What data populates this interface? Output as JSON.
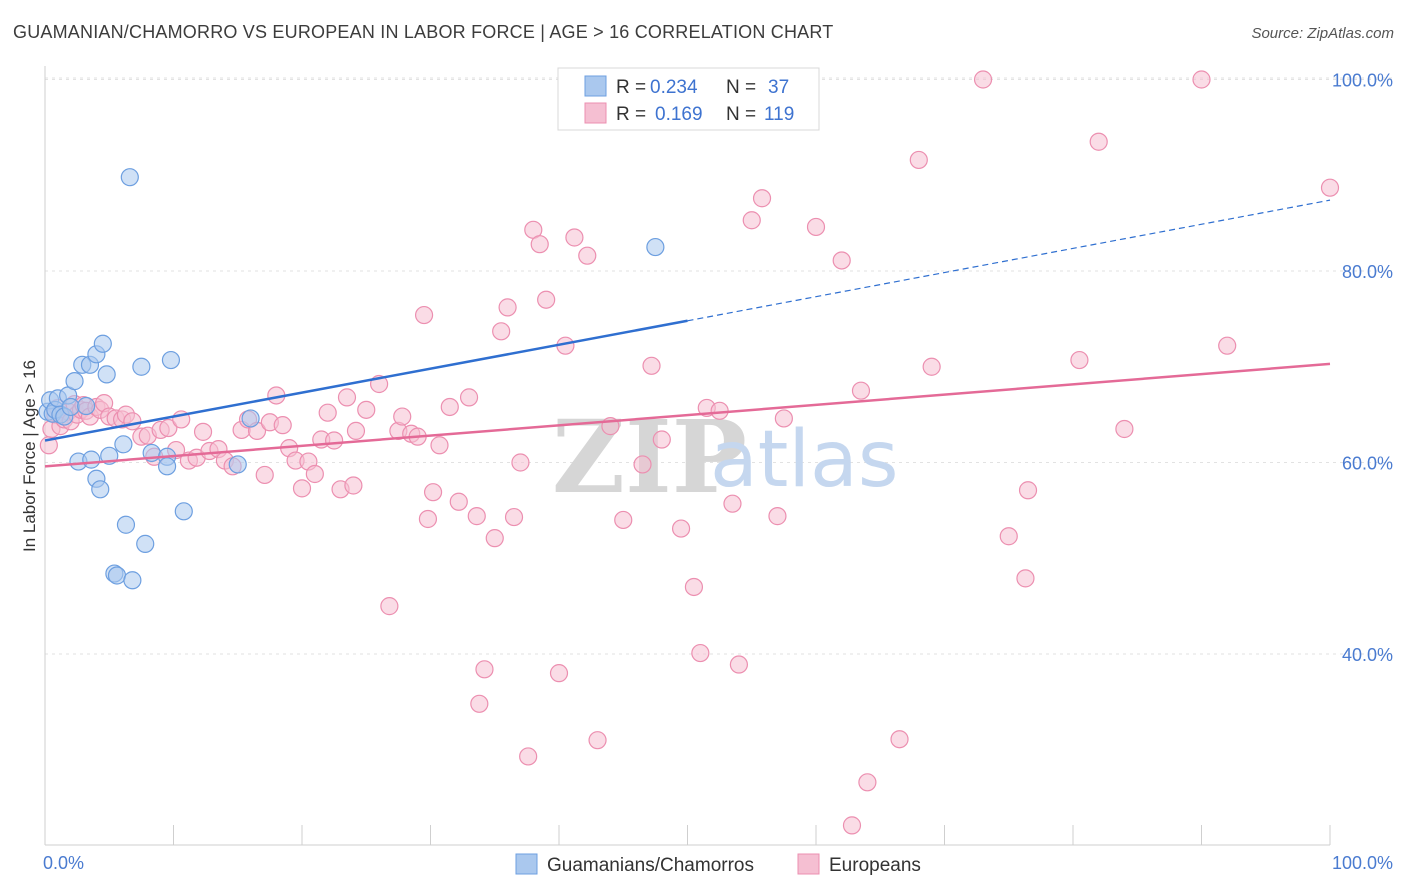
{
  "title": "GUAMANIAN/CHAMORRO VS EUROPEAN IN LABOR FORCE | AGE > 16 CORRELATION CHART",
  "source": "Source: ZipAtlas.com",
  "watermark": {
    "zip": "ZIP",
    "atlas": "atlas"
  },
  "legend_top": {
    "rows": [
      {
        "r_label": "R =",
        "r_value": "0.234",
        "n_label": "N =",
        "n_value": "37"
      },
      {
        "r_label": "R =",
        "r_value": "0.169",
        "n_label": "N =",
        "n_value": "119"
      }
    ]
  },
  "legend_bottom": [
    "Guamanians/Chamorros",
    "Europeans"
  ],
  "colors": {
    "blue_fill": "#aac8ee",
    "blue_stroke": "#6d9fe0",
    "blue_line": "#2f6fd0",
    "pink_fill": "#f5bfd2",
    "pink_stroke": "#ec8fb0",
    "pink_line": "#e46a97",
    "grid": "#e2e2e2",
    "tick_text": "#4a7bd0"
  },
  "chart_data": {
    "type": "scatter",
    "title": "GUAMANIAN/CHAMORRO VS EUROPEAN IN LABOR FORCE | AGE > 16 CORRELATION CHART",
    "xlabel": "",
    "ylabel": "In Labor Force | Age > 16",
    "xlim": [
      0,
      100
    ],
    "ylim": [
      20,
      104
    ],
    "x_tick_labels": [
      "0.0%",
      "100.0%"
    ],
    "y_ticks": [
      40,
      60,
      80,
      100
    ],
    "y_tick_labels": [
      "40.0%",
      "60.0%",
      "80.0%",
      "100.0%"
    ],
    "grid": true,
    "legend_placement": "top-center",
    "series": [
      {
        "name": "Guamanians/Chamorros",
        "R": 0.234,
        "N": 37,
        "trend": {
          "x0": 0,
          "y0": 62.3,
          "x1": 50,
          "y1": 74.8,
          "dashed_to_x": 100,
          "dashed_to_y": 87.4
        },
        "points": [
          [
            0.2,
            65.3
          ],
          [
            0.4,
            66.5
          ],
          [
            0.6,
            65.1
          ],
          [
            0.8,
            65.5
          ],
          [
            1.0,
            66.7
          ],
          [
            1.2,
            65.0
          ],
          [
            1.5,
            64.8
          ],
          [
            1.8,
            67.0
          ],
          [
            2.0,
            65.8
          ],
          [
            2.3,
            68.5
          ],
          [
            2.6,
            60.1
          ],
          [
            2.9,
            70.2
          ],
          [
            3.2,
            65.9
          ],
          [
            3.5,
            70.2
          ],
          [
            3.6,
            60.3
          ],
          [
            4.0,
            71.3
          ],
          [
            4.0,
            58.3
          ],
          [
            4.3,
            57.2
          ],
          [
            4.5,
            72.4
          ],
          [
            4.8,
            69.2
          ],
          [
            5.0,
            60.7
          ],
          [
            5.4,
            48.4
          ],
          [
            5.6,
            48.2
          ],
          [
            6.1,
            61.9
          ],
          [
            6.3,
            53.5
          ],
          [
            6.6,
            89.8
          ],
          [
            6.8,
            47.7
          ],
          [
            7.5,
            70.0
          ],
          [
            7.8,
            51.5
          ],
          [
            8.3,
            61.0
          ],
          [
            9.5,
            60.6
          ],
          [
            9.5,
            59.6
          ],
          [
            9.8,
            70.7
          ],
          [
            10.8,
            54.9
          ],
          [
            15.0,
            59.8
          ],
          [
            16.0,
            64.6
          ],
          [
            47.5,
            82.5
          ]
        ]
      },
      {
        "name": "Europeans",
        "R": 0.169,
        "N": 119,
        "trend": {
          "x0": 0,
          "y0": 59.6,
          "x1": 100,
          "y1": 70.3
        },
        "points": [
          [
            0.3,
            61.8
          ],
          [
            0.5,
            63.5
          ],
          [
            0.8,
            65.0
          ],
          [
            1.0,
            65.7
          ],
          [
            1.2,
            63.8
          ],
          [
            1.5,
            64.5
          ],
          [
            1.8,
            65.3
          ],
          [
            2.0,
            64.3
          ],
          [
            2.3,
            66.1
          ],
          [
            2.5,
            65.0
          ],
          [
            2.8,
            65.5
          ],
          [
            3.0,
            66.0
          ],
          [
            3.2,
            65.4
          ],
          [
            3.5,
            64.8
          ],
          [
            4.0,
            65.8
          ],
          [
            4.3,
            65.5
          ],
          [
            4.6,
            66.2
          ],
          [
            5.0,
            64.8
          ],
          [
            5.5,
            64.6
          ],
          [
            6.0,
            64.5
          ],
          [
            6.3,
            65.0
          ],
          [
            6.8,
            64.3
          ],
          [
            7.5,
            62.7
          ],
          [
            8.0,
            62.8
          ],
          [
            8.5,
            60.6
          ],
          [
            9.0,
            63.4
          ],
          [
            9.6,
            63.6
          ],
          [
            10.2,
            61.3
          ],
          [
            10.6,
            64.5
          ],
          [
            11.2,
            60.2
          ],
          [
            11.8,
            60.5
          ],
          [
            12.3,
            63.2
          ],
          [
            12.8,
            61.2
          ],
          [
            13.5,
            61.4
          ],
          [
            14.0,
            60.2
          ],
          [
            14.6,
            59.6
          ],
          [
            15.3,
            63.4
          ],
          [
            15.8,
            64.5
          ],
          [
            16.5,
            63.3
          ],
          [
            17.1,
            58.7
          ],
          [
            17.5,
            64.2
          ],
          [
            18.0,
            67.0
          ],
          [
            18.5,
            63.9
          ],
          [
            19.0,
            61.5
          ],
          [
            19.5,
            60.2
          ],
          [
            20.0,
            57.3
          ],
          [
            20.5,
            60.1
          ],
          [
            21.0,
            58.8
          ],
          [
            21.5,
            62.4
          ],
          [
            22.0,
            65.2
          ],
          [
            22.5,
            62.3
          ],
          [
            23.0,
            57.2
          ],
          [
            23.5,
            66.8
          ],
          [
            24.0,
            57.6
          ],
          [
            24.2,
            63.3
          ],
          [
            25.0,
            65.5
          ],
          [
            26.0,
            68.2
          ],
          [
            26.8,
            45.0
          ],
          [
            27.5,
            63.3
          ],
          [
            27.8,
            64.8
          ],
          [
            28.5,
            63.0
          ],
          [
            29.0,
            62.7
          ],
          [
            29.5,
            75.4
          ],
          [
            29.8,
            54.1
          ],
          [
            30.2,
            56.9
          ],
          [
            30.7,
            61.8
          ],
          [
            31.5,
            65.8
          ],
          [
            32.2,
            55.9
          ],
          [
            33.0,
            66.8
          ],
          [
            33.6,
            54.4
          ],
          [
            33.8,
            34.8
          ],
          [
            34.2,
            38.4
          ],
          [
            35.0,
            52.1
          ],
          [
            35.5,
            73.7
          ],
          [
            36.0,
            76.2
          ],
          [
            36.5,
            54.3
          ],
          [
            37.0,
            60.0
          ],
          [
            37.6,
            29.3
          ],
          [
            38.0,
            84.3
          ],
          [
            38.5,
            82.8
          ],
          [
            39.0,
            77.0
          ],
          [
            40.0,
            38.0
          ],
          [
            40.5,
            72.2
          ],
          [
            41.2,
            83.5
          ],
          [
            42.2,
            81.6
          ],
          [
            43.0,
            31.0
          ],
          [
            44.0,
            63.8
          ],
          [
            45.0,
            54.0
          ],
          [
            46.5,
            59.8
          ],
          [
            47.2,
            70.1
          ],
          [
            48.0,
            62.4
          ],
          [
            49.5,
            53.1
          ],
          [
            50.5,
            47.0
          ],
          [
            51.0,
            40.1
          ],
          [
            51.5,
            65.7
          ],
          [
            52.5,
            65.4
          ],
          [
            53.5,
            55.7
          ],
          [
            54.0,
            38.9
          ],
          [
            55.0,
            85.3
          ],
          [
            55.8,
            87.6
          ],
          [
            57.0,
            54.4
          ],
          [
            57.5,
            64.6
          ],
          [
            60.0,
            84.6
          ],
          [
            62.0,
            81.1
          ],
          [
            62.8,
            22.1
          ],
          [
            63.5,
            67.5
          ],
          [
            64.0,
            26.6
          ],
          [
            66.5,
            31.1
          ],
          [
            68.0,
            91.6
          ],
          [
            69.0,
            70.0
          ],
          [
            73.0,
            100.0
          ],
          [
            75.0,
            52.3
          ],
          [
            76.5,
            57.1
          ],
          [
            76.3,
            47.9
          ],
          [
            80.5,
            70.7
          ],
          [
            82.0,
            93.5
          ],
          [
            84.0,
            63.5
          ],
          [
            90.0,
            100.0
          ],
          [
            92.0,
            72.2
          ],
          [
            100.0,
            88.7
          ]
        ]
      }
    ]
  }
}
